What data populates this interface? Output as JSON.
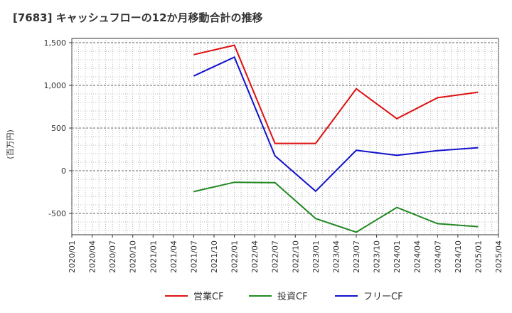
{
  "chart_data": {
    "type": "line",
    "title": "[7683]  キャッシュフローの12か月移動合計の推移",
    "ylabel": "(百万円)",
    "xlabel": "",
    "ylim": [
      -750,
      1550
    ],
    "yticks": [
      -500,
      0,
      500,
      1000,
      1500
    ],
    "ytick_labels": [
      "-500",
      "0",
      "500",
      "1,000",
      "1,500"
    ],
    "categories": [
      "2020/01",
      "2020/04",
      "2020/07",
      "2020/10",
      "2021/01",
      "2021/04",
      "2021/07",
      "2021/10",
      "2022/01",
      "2022/04",
      "2022/07",
      "2022/10",
      "2023/01",
      "2023/04",
      "2023/07",
      "2023/10",
      "2024/01",
      "2024/04",
      "2024/07",
      "2024/10",
      "2025/01",
      "2025/04"
    ],
    "series": [
      {
        "name": "営業CF",
        "color": "#dd1111",
        "points": [
          {
            "x": "2021/07",
            "y": 1360
          },
          {
            "x": "2022/01",
            "y": 1470
          },
          {
            "x": "2022/07",
            "y": 320
          },
          {
            "x": "2023/01",
            "y": 320
          },
          {
            "x": "2023/07",
            "y": 960
          },
          {
            "x": "2024/01",
            "y": 610
          },
          {
            "x": "2024/07",
            "y": 855
          },
          {
            "x": "2025/01",
            "y": 920
          }
        ]
      },
      {
        "name": "投資CF",
        "color": "#228822",
        "points": [
          {
            "x": "2021/07",
            "y": -245
          },
          {
            "x": "2022/01",
            "y": -135
          },
          {
            "x": "2022/07",
            "y": -140
          },
          {
            "x": "2023/01",
            "y": -560
          },
          {
            "x": "2023/07",
            "y": -720
          },
          {
            "x": "2024/01",
            "y": -430
          },
          {
            "x": "2024/07",
            "y": -620
          },
          {
            "x": "2025/01",
            "y": -655
          }
        ]
      },
      {
        "name": "フリーCF",
        "color": "#1111cc",
        "points": [
          {
            "x": "2021/07",
            "y": 1110
          },
          {
            "x": "2022/01",
            "y": 1330
          },
          {
            "x": "2022/07",
            "y": 175
          },
          {
            "x": "2023/01",
            "y": -240
          },
          {
            "x": "2023/07",
            "y": 240
          },
          {
            "x": "2024/01",
            "y": 180
          },
          {
            "x": "2024/07",
            "y": 235
          },
          {
            "x": "2025/01",
            "y": 270
          }
        ]
      }
    ],
    "legend_position": "bottom"
  }
}
